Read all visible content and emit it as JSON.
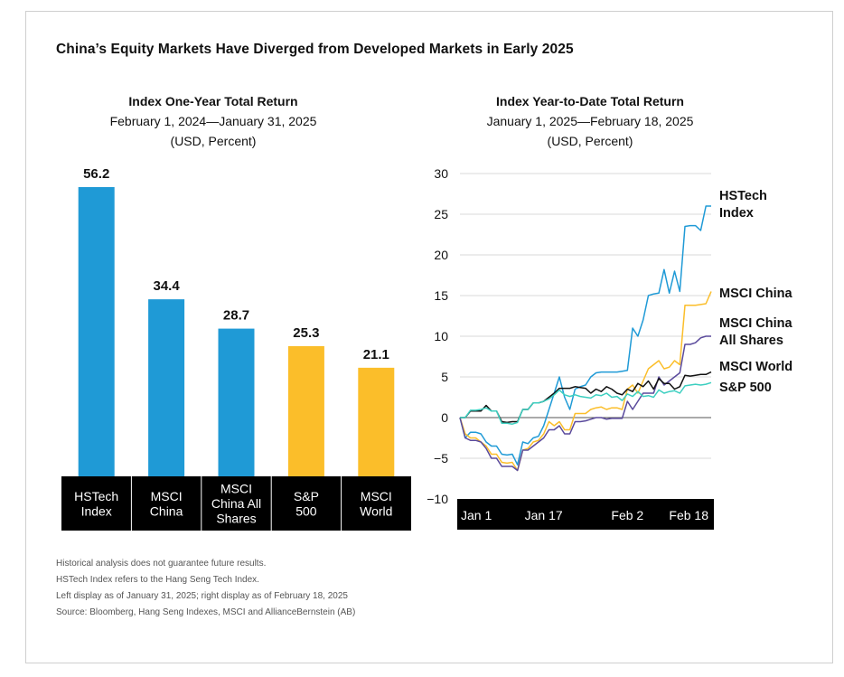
{
  "main_title": "China’s Equity Markets Have Diverged from Developed Markets in Early 2025",
  "left": {
    "title": "Index One-Year Total Return",
    "period": "February 1, 2024—January 31, 2025",
    "units": "(USD, Percent)"
  },
  "right": {
    "title": "Index Year-to-Date Total Return",
    "period": "January 1, 2025—February 18, 2025",
    "units": "(USD, Percent)"
  },
  "notes": [
    "Historical analysis does not guarantee future results.",
    "HSTech Index refers to the Hang Seng Tech Index.",
    "Left display as of January 31, 2025; right display as of February 18, 2025",
    "Source: Bloomberg, Hang Seng Indexes, MSCI and AllianceBernstein (AB)"
  ],
  "colors": {
    "blue": "#1f9ad6",
    "yellow": "#fbbe2a",
    "teal": "#3ccfc0",
    "purple": "#5a4a9c",
    "black": "#111111"
  },
  "chart_data": [
    {
      "type": "bar",
      "title": "Index One-Year Total Return",
      "categories": [
        [
          "HSTech",
          "Index"
        ],
        [
          "MSCI",
          "China"
        ],
        [
          "MSCI",
          "China All",
          "Shares"
        ],
        [
          "S&P",
          "500"
        ],
        [
          "MSCI",
          "World"
        ]
      ],
      "values": [
        56.2,
        34.4,
        28.7,
        25.3,
        21.1
      ],
      "labels": [
        "56.2",
        "34.4",
        "28.7",
        "25.3",
        "21.1"
      ],
      "bar_colors": [
        "#1f9ad6",
        "#1f9ad6",
        "#1f9ad6",
        "#fbbe2a",
        "#fbbe2a"
      ],
      "ylim": [
        0,
        60
      ]
    },
    {
      "type": "line",
      "title": "Index Year-to-Date Total Return",
      "x_ticks": [
        "Jan 1",
        "Jan 17",
        "Feb 2",
        "Feb 18"
      ],
      "x_tick_pos": [
        0,
        16,
        32,
        48
      ],
      "xlim": [
        0,
        48
      ],
      "ylim": [
        -10,
        30
      ],
      "y_ticks": [
        30,
        25,
        20,
        15,
        10,
        5,
        0,
        -5,
        -10
      ],
      "series": [
        {
          "name": [
            "HSTech",
            "Index"
          ],
          "color": "#1f9ad6",
          "x": [
            0,
            1,
            2,
            3,
            4,
            5,
            6,
            7,
            8,
            9,
            10,
            11,
            12,
            13,
            14,
            15,
            16,
            17,
            18,
            19,
            20,
            21,
            22,
            23,
            24,
            25,
            26,
            27,
            28,
            29,
            30,
            31,
            32,
            33,
            34,
            35,
            36,
            37,
            38,
            39,
            40,
            41,
            42,
            43,
            44,
            45,
            46,
            47,
            48
          ],
          "y": [
            0,
            -2.5,
            -1.8,
            -1.8,
            -2,
            -3,
            -3.5,
            -3.5,
            -4.5,
            -4.6,
            -4.5,
            -5.8,
            -3,
            -3.2,
            -2.5,
            -2.3,
            -1,
            1,
            3,
            5,
            2.5,
            1,
            3.5,
            3.8,
            4,
            5,
            5.5,
            5.6,
            5.6,
            5.6,
            5.6,
            5.7,
            5.8,
            11,
            10,
            12,
            15,
            15.2,
            15.3,
            18.2,
            15.3,
            18,
            15.5,
            23.5,
            23.6,
            23.6,
            23,
            26,
            26
          ]
        },
        {
          "name": [
            "MSCI China"
          ],
          "color": "#fbbe2a",
          "x": [
            0,
            1,
            2,
            3,
            4,
            5,
            6,
            7,
            8,
            9,
            10,
            11,
            12,
            13,
            14,
            15,
            16,
            17,
            18,
            19,
            20,
            21,
            22,
            23,
            24,
            25,
            26,
            27,
            28,
            29,
            30,
            31,
            32,
            33,
            34,
            35,
            36,
            37,
            38,
            39,
            40,
            41,
            42,
            43,
            44,
            45,
            46,
            47,
            48
          ],
          "y": [
            0,
            -2,
            -2.5,
            -2.5,
            -3,
            -3.5,
            -4.5,
            -4.5,
            -5.5,
            -5.6,
            -5.5,
            -6.5,
            -4,
            -3.8,
            -3,
            -2.8,
            -2,
            -0.5,
            -1,
            -0.5,
            -1.5,
            -1.5,
            0.5,
            0.5,
            0.5,
            1,
            1.2,
            1.3,
            1,
            1.2,
            1.2,
            1,
            3.5,
            4,
            3,
            4.5,
            6,
            6.5,
            7,
            6,
            6.2,
            7,
            6.5,
            13.8,
            13.8,
            13.8,
            13.9,
            14,
            15.5
          ]
        },
        {
          "name": [
            "MSCI China",
            "All Shares"
          ],
          "color": "#5a4a9c",
          "x": [
            0,
            1,
            2,
            3,
            4,
            5,
            6,
            7,
            8,
            9,
            10,
            11,
            12,
            13,
            14,
            15,
            16,
            17,
            18,
            19,
            20,
            21,
            22,
            23,
            24,
            25,
            26,
            27,
            28,
            29,
            30,
            31,
            32,
            33,
            34,
            35,
            36,
            37,
            38,
            39,
            40,
            41,
            42,
            43,
            44,
            45,
            46,
            47,
            48
          ],
          "y": [
            0,
            -2.5,
            -2.8,
            -2.8,
            -3,
            -3.8,
            -5,
            -5,
            -6,
            -6,
            -6,
            -6.5,
            -4,
            -4,
            -3.5,
            -3,
            -2.5,
            -1.5,
            -1.5,
            -1,
            -2,
            -2,
            -0.5,
            -0.5,
            -0.4,
            -0.2,
            0,
            0,
            -0.2,
            -0.1,
            -0.1,
            -0.1,
            2,
            1,
            2,
            3,
            3,
            3,
            5,
            4,
            4.5,
            5,
            5.5,
            9,
            9,
            9.2,
            9.8,
            10,
            10
          ]
        },
        {
          "name": [
            "MSCI World"
          ],
          "color": "#111111",
          "x": [
            0,
            1,
            2,
            3,
            4,
            5,
            6,
            7,
            8,
            9,
            10,
            11,
            12,
            13,
            14,
            15,
            16,
            17,
            18,
            19,
            20,
            21,
            22,
            23,
            24,
            25,
            26,
            27,
            28,
            29,
            30,
            31,
            32,
            33,
            34,
            35,
            36,
            37,
            38,
            39,
            40,
            41,
            42,
            43,
            44,
            45,
            46,
            47,
            48
          ],
          "y": [
            0,
            0,
            0.8,
            0.8,
            0.8,
            1.5,
            0.8,
            0.8,
            -0.5,
            -0.6,
            -0.5,
            -0.5,
            1,
            1,
            1.8,
            1.8,
            2,
            2.5,
            3,
            3.6,
            3.6,
            3.6,
            3.8,
            3.7,
            3.6,
            3,
            3.5,
            3.2,
            3.8,
            3.5,
            3,
            2.8,
            3.5,
            3.2,
            4.2,
            3.8,
            4.5,
            3.5,
            4.8,
            4.2,
            4.2,
            3.5,
            3.8,
            5.2,
            5.1,
            5.2,
            5.3,
            5.3,
            5.6
          ]
        },
        {
          "name": [
            "S&P 500"
          ],
          "color": "#3ccfc0",
          "x": [
            0,
            1,
            2,
            3,
            4,
            5,
            6,
            7,
            8,
            9,
            10,
            11,
            12,
            13,
            14,
            15,
            16,
            17,
            18,
            19,
            20,
            21,
            22,
            23,
            24,
            25,
            26,
            27,
            28,
            29,
            30,
            31,
            32,
            33,
            34,
            35,
            36,
            37,
            38,
            39,
            40,
            41,
            42,
            43,
            44,
            45,
            46,
            47,
            48
          ],
          "y": [
            0,
            0,
            0.9,
            0.9,
            1,
            1.2,
            0.8,
            0.8,
            -0.7,
            -0.7,
            -0.8,
            -0.6,
            1,
            1,
            1.8,
            1.8,
            2,
            2.3,
            2.8,
            3.4,
            2.8,
            2.6,
            2.8,
            2.6,
            2.5,
            2.4,
            2.8,
            2.7,
            3,
            2.5,
            2.6,
            2.1,
            2.9,
            2.6,
            3.2,
            2.6,
            2.7,
            2.5,
            3.4,
            3,
            3.2,
            3.3,
            3,
            3.9,
            4,
            4.1,
            4,
            4.1,
            4.3
          ]
        }
      ]
    }
  ]
}
